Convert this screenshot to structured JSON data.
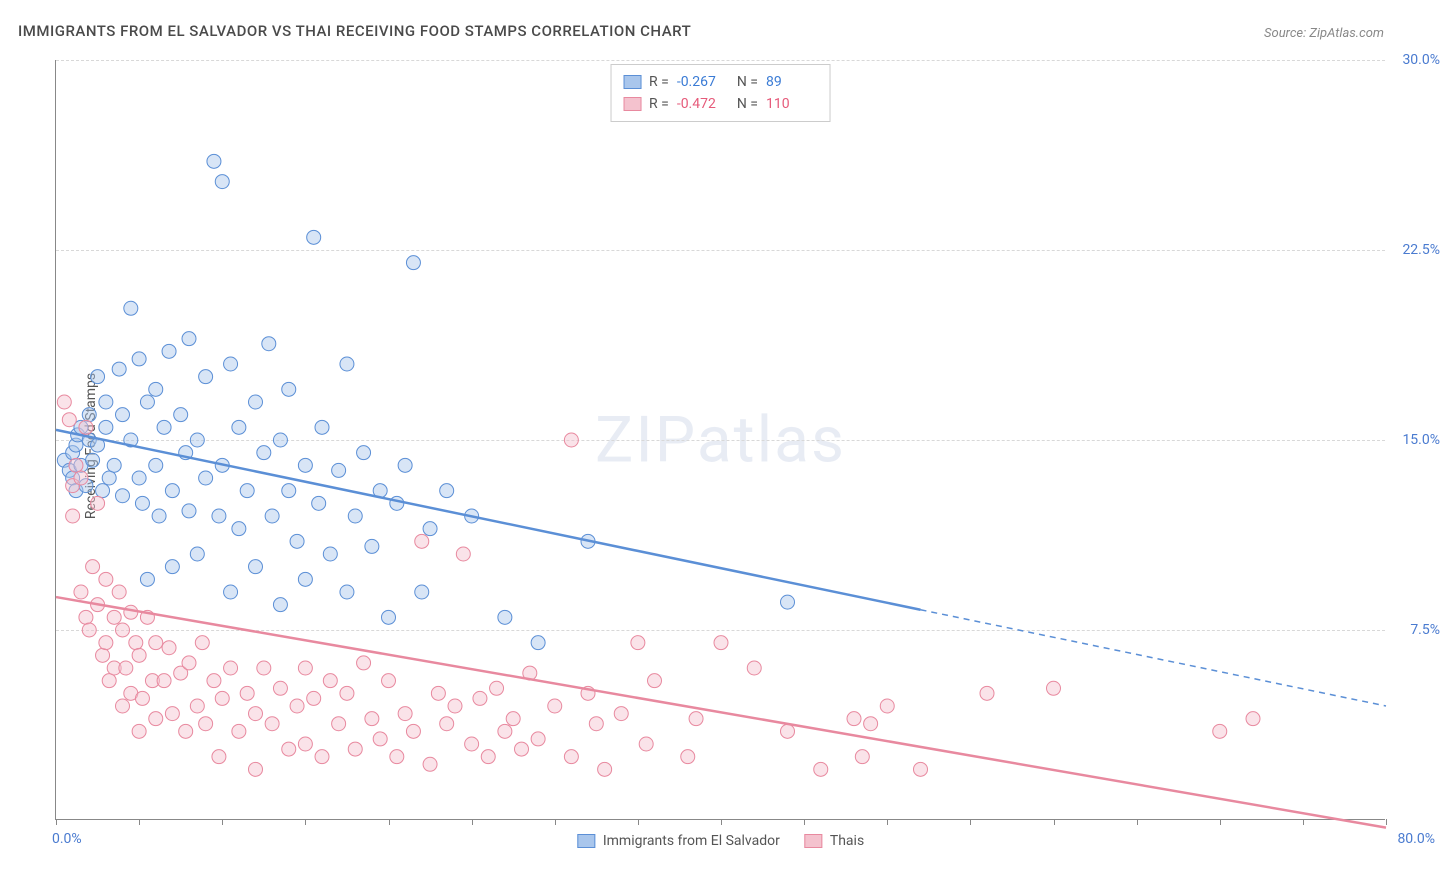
{
  "title": "IMMIGRANTS FROM EL SALVADOR VS THAI RECEIVING FOOD STAMPS CORRELATION CHART",
  "source": "Source: ZipAtlas.com",
  "watermark": "ZIPatlas",
  "ylabel": "Receiving Food Stamps",
  "chart": {
    "type": "scatter",
    "xlim": [
      0.0,
      80.0
    ],
    "ylim": [
      0.0,
      30.0
    ],
    "xlim_labels": [
      "0.0%",
      "80.0%"
    ],
    "ytick_step": 7.5,
    "ytick_labels": [
      "7.5%",
      "15.0%",
      "22.5%",
      "30.0%"
    ],
    "xtick_count": 16,
    "background_color": "#ffffff",
    "grid_color": "#d8d8d8",
    "axis_color": "#888888",
    "tick_label_color": "#4a7bd0",
    "marker_radius": 7,
    "marker_opacity": 0.45,
    "series": [
      {
        "name": "Immigrants from El Salvador",
        "color_fill": "#a9c6ec",
        "color_stroke": "#5b8fd6",
        "r": -0.267,
        "n": 89,
        "r_color": "#3a7bd5",
        "n_color": "#3a7bd5",
        "trend": {
          "x1": 0,
          "y1": 15.4,
          "x2_solid": 52,
          "y2_solid": 8.3,
          "x2_dashed": 80,
          "y2_dashed": 4.5
        },
        "points": [
          [
            0.5,
            14.2
          ],
          [
            0.8,
            13.8
          ],
          [
            1.0,
            14.5
          ],
          [
            1.0,
            13.5
          ],
          [
            1.2,
            13.0
          ],
          [
            1.2,
            14.8
          ],
          [
            1.3,
            15.2
          ],
          [
            1.5,
            14.0
          ],
          [
            1.5,
            15.5
          ],
          [
            1.8,
            13.2
          ],
          [
            2.0,
            16.0
          ],
          [
            2.0,
            15.0
          ],
          [
            2.2,
            14.2
          ],
          [
            2.5,
            14.8
          ],
          [
            2.5,
            17.5
          ],
          [
            2.8,
            13.0
          ],
          [
            3.0,
            15.5
          ],
          [
            3.0,
            16.5
          ],
          [
            3.2,
            13.5
          ],
          [
            3.5,
            14.0
          ],
          [
            3.8,
            17.8
          ],
          [
            4.0,
            16.0
          ],
          [
            4.0,
            12.8
          ],
          [
            4.5,
            20.2
          ],
          [
            4.5,
            15.0
          ],
          [
            5.0,
            13.5
          ],
          [
            5.0,
            18.2
          ],
          [
            5.2,
            12.5
          ],
          [
            5.5,
            16.5
          ],
          [
            5.5,
            9.5
          ],
          [
            6.0,
            14.0
          ],
          [
            6.0,
            17.0
          ],
          [
            6.2,
            12.0
          ],
          [
            6.5,
            15.5
          ],
          [
            6.8,
            18.5
          ],
          [
            7.0,
            13.0
          ],
          [
            7.0,
            10.0
          ],
          [
            7.5,
            16.0
          ],
          [
            7.8,
            14.5
          ],
          [
            8.0,
            12.2
          ],
          [
            8.0,
            19.0
          ],
          [
            8.5,
            15.0
          ],
          [
            8.5,
            10.5
          ],
          [
            9.0,
            13.5
          ],
          [
            9.0,
            17.5
          ],
          [
            9.5,
            26.0
          ],
          [
            9.8,
            12.0
          ],
          [
            10.0,
            14.0
          ],
          [
            10.0,
            25.2
          ],
          [
            10.5,
            18.0
          ],
          [
            10.5,
            9.0
          ],
          [
            11.0,
            15.5
          ],
          [
            11.0,
            11.5
          ],
          [
            11.5,
            13.0
          ],
          [
            12.0,
            16.5
          ],
          [
            12.0,
            10.0
          ],
          [
            12.5,
            14.5
          ],
          [
            12.8,
            18.8
          ],
          [
            13.0,
            12.0
          ],
          [
            13.5,
            15.0
          ],
          [
            13.5,
            8.5
          ],
          [
            14.0,
            13.0
          ],
          [
            14.0,
            17.0
          ],
          [
            14.5,
            11.0
          ],
          [
            15.0,
            14.0
          ],
          [
            15.0,
            9.5
          ],
          [
            15.5,
            23.0
          ],
          [
            15.8,
            12.5
          ],
          [
            16.0,
            15.5
          ],
          [
            16.5,
            10.5
          ],
          [
            17.0,
            13.8
          ],
          [
            17.5,
            18.0
          ],
          [
            17.5,
            9.0
          ],
          [
            18.0,
            12.0
          ],
          [
            18.5,
            14.5
          ],
          [
            19.0,
            10.8
          ],
          [
            19.5,
            13.0
          ],
          [
            20.0,
            8.0
          ],
          [
            20.5,
            12.5
          ],
          [
            21.0,
            14.0
          ],
          [
            21.5,
            22.0
          ],
          [
            22.0,
            9.0
          ],
          [
            22.5,
            11.5
          ],
          [
            23.5,
            13.0
          ],
          [
            25.0,
            12.0
          ],
          [
            27.0,
            8.0
          ],
          [
            29.0,
            7.0
          ],
          [
            32.0,
            11.0
          ],
          [
            44.0,
            8.6
          ]
        ]
      },
      {
        "name": "Thais",
        "color_fill": "#f4c2ce",
        "color_stroke": "#e8899f",
        "r": -0.472,
        "n": 110,
        "r_color": "#e65a7a",
        "n_color": "#e65a7a",
        "trend": {
          "x1": 0,
          "y1": 8.8,
          "x2_solid": 80,
          "y2_solid": -0.3,
          "x2_dashed": 80,
          "y2_dashed": -0.3
        },
        "points": [
          [
            0.5,
            16.5
          ],
          [
            0.8,
            15.8
          ],
          [
            1.0,
            12.0
          ],
          [
            1.0,
            13.2
          ],
          [
            1.2,
            14.0
          ],
          [
            1.5,
            9.0
          ],
          [
            1.5,
            13.5
          ],
          [
            1.8,
            8.0
          ],
          [
            1.8,
            15.5
          ],
          [
            2.0,
            7.5
          ],
          [
            2.2,
            10.0
          ],
          [
            2.5,
            8.5
          ],
          [
            2.5,
            12.5
          ],
          [
            2.8,
            6.5
          ],
          [
            3.0,
            9.5
          ],
          [
            3.0,
            7.0
          ],
          [
            3.2,
            5.5
          ],
          [
            3.5,
            8.0
          ],
          [
            3.5,
            6.0
          ],
          [
            3.8,
            9.0
          ],
          [
            4.0,
            4.5
          ],
          [
            4.0,
            7.5
          ],
          [
            4.2,
            6.0
          ],
          [
            4.5,
            8.2
          ],
          [
            4.5,
            5.0
          ],
          [
            4.8,
            7.0
          ],
          [
            5.0,
            3.5
          ],
          [
            5.0,
            6.5
          ],
          [
            5.2,
            4.8
          ],
          [
            5.5,
            8.0
          ],
          [
            5.8,
            5.5
          ],
          [
            6.0,
            7.0
          ],
          [
            6.0,
            4.0
          ],
          [
            6.5,
            5.5
          ],
          [
            6.8,
            6.8
          ],
          [
            7.0,
            4.2
          ],
          [
            7.5,
            5.8
          ],
          [
            7.8,
            3.5
          ],
          [
            8.0,
            6.2
          ],
          [
            8.5,
            4.5
          ],
          [
            8.8,
            7.0
          ],
          [
            9.0,
            3.8
          ],
          [
            9.5,
            5.5
          ],
          [
            9.8,
            2.5
          ],
          [
            10.0,
            4.8
          ],
          [
            10.5,
            6.0
          ],
          [
            11.0,
            3.5
          ],
          [
            11.5,
            5.0
          ],
          [
            12.0,
            4.2
          ],
          [
            12.0,
            2.0
          ],
          [
            12.5,
            6.0
          ],
          [
            13.0,
            3.8
          ],
          [
            13.5,
            5.2
          ],
          [
            14.0,
            2.8
          ],
          [
            14.5,
            4.5
          ],
          [
            15.0,
            6.0
          ],
          [
            15.0,
            3.0
          ],
          [
            15.5,
            4.8
          ],
          [
            16.0,
            2.5
          ],
          [
            16.5,
            5.5
          ],
          [
            17.0,
            3.8
          ],
          [
            17.5,
            5.0
          ],
          [
            18.0,
            2.8
          ],
          [
            18.5,
            6.2
          ],
          [
            19.0,
            4.0
          ],
          [
            19.5,
            3.2
          ],
          [
            20.0,
            5.5
          ],
          [
            20.5,
            2.5
          ],
          [
            21.0,
            4.2
          ],
          [
            21.5,
            3.5
          ],
          [
            22.0,
            11.0
          ],
          [
            22.5,
            2.2
          ],
          [
            23.0,
            5.0
          ],
          [
            23.5,
            3.8
          ],
          [
            24.0,
            4.5
          ],
          [
            24.5,
            10.5
          ],
          [
            25.0,
            3.0
          ],
          [
            25.5,
            4.8
          ],
          [
            26.0,
            2.5
          ],
          [
            26.5,
            5.2
          ],
          [
            27.0,
            3.5
          ],
          [
            27.5,
            4.0
          ],
          [
            28.0,
            2.8
          ],
          [
            28.5,
            5.8
          ],
          [
            29.0,
            3.2
          ],
          [
            30.0,
            4.5
          ],
          [
            31.0,
            15.0
          ],
          [
            31.0,
            2.5
          ],
          [
            32.0,
            5.0
          ],
          [
            32.5,
            3.8
          ],
          [
            33.0,
            2.0
          ],
          [
            34.0,
            4.2
          ],
          [
            35.0,
            7.0
          ],
          [
            35.5,
            3.0
          ],
          [
            36.0,
            5.5
          ],
          [
            38.0,
            2.5
          ],
          [
            38.5,
            4.0
          ],
          [
            40.0,
            7.0
          ],
          [
            42.0,
            6.0
          ],
          [
            44.0,
            3.5
          ],
          [
            46.0,
            2.0
          ],
          [
            48.0,
            4.0
          ],
          [
            48.5,
            2.5
          ],
          [
            49.0,
            3.8
          ],
          [
            50.0,
            4.5
          ],
          [
            52.0,
            2.0
          ],
          [
            56.0,
            5.0
          ],
          [
            60.0,
            5.2
          ],
          [
            70.0,
            3.5
          ],
          [
            72.0,
            4.0
          ]
        ]
      }
    ]
  },
  "legend_top": {
    "r_label": "R =",
    "n_label": "N ="
  },
  "legend_bottom": [
    {
      "label": "Immigrants from El Salvador",
      "fill": "#a9c6ec",
      "stroke": "#5b8fd6"
    },
    {
      "label": "Thais",
      "fill": "#f4c2ce",
      "stroke": "#e8899f"
    }
  ]
}
